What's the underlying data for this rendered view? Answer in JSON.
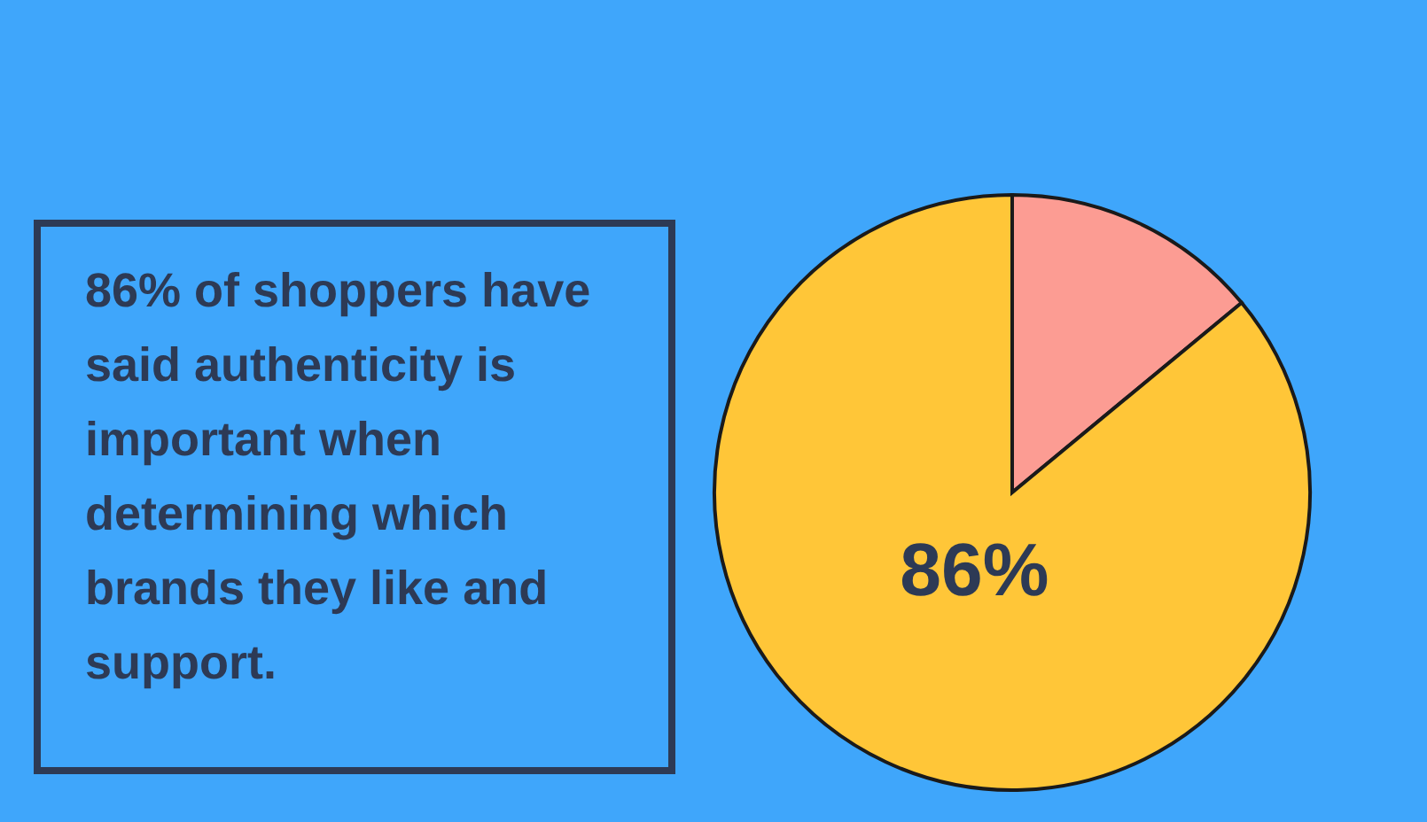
{
  "chart_data": {
    "type": "pie",
    "categories": [
      null,
      null
    ],
    "values": [
      14,
      86
    ],
    "colors": [
      "#fc9c93",
      "#ffc638"
    ],
    "value_labels": [
      null,
      "86%"
    ],
    "annotations": [
      "86% of shoppers have said authenticity is important when determining which brands they like and support."
    ]
  }
}
